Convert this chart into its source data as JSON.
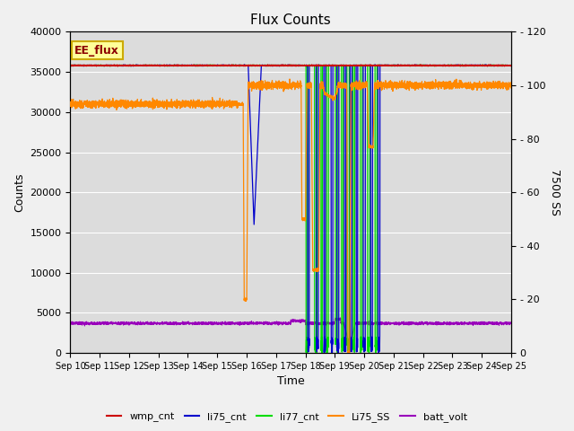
{
  "title": "Flux Counts",
  "xlabel": "Time",
  "ylabel_left": "Counts",
  "ylabel_right": "7500 SS",
  "ylim_left": [
    0,
    40000
  ],
  "ylim_right": [
    0,
    120
  ],
  "bg_color": "#dcdcdc",
  "fig_bg_color": "#f0f0f0",
  "annotation_label": "EE_flux",
  "annotation_color": "#8b0000",
  "annotation_bg": "#ffff99",
  "annotation_border": "#ccaa00",
  "li77_cnt_color": "#00dd00",
  "li75_cnt_color": "#0000cc",
  "wmp_cnt_color": "#cc0000",
  "Li75_SS_color": "#ff8800",
  "batt_volt_color": "#9900bb",
  "x_tick_labels": [
    "Sep 10",
    "Sep 11",
    "Sep 12",
    "Sep 13",
    "Sep 14",
    "Sep 15",
    "Sep 16",
    "Sep 17",
    "Sep 18",
    "Sep 19",
    "Sep 20",
    "Sep 21",
    "Sep 22",
    "Sep 23",
    "Sep 24",
    "Sep 25"
  ]
}
